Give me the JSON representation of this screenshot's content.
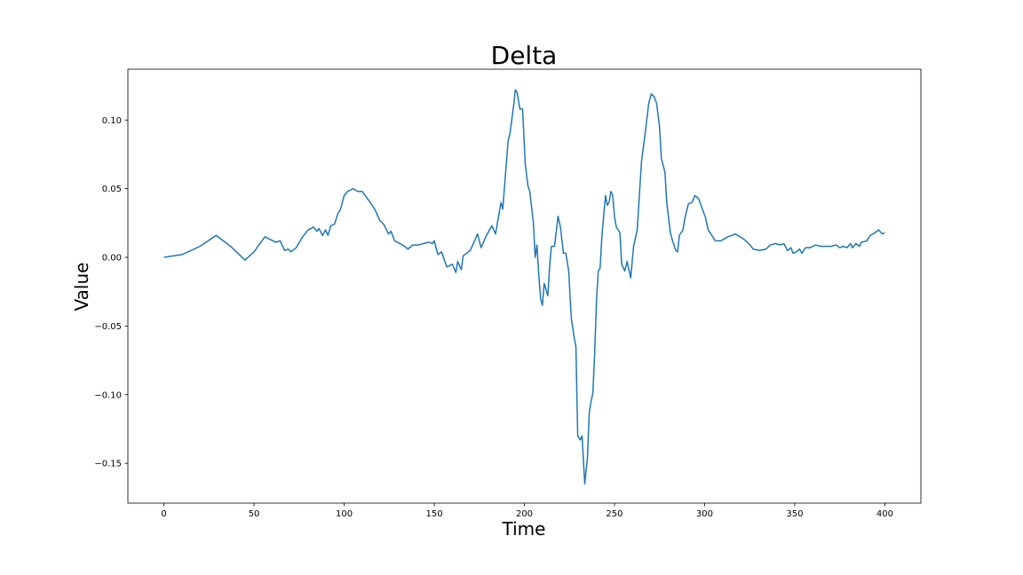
{
  "chart_data": {
    "type": "line",
    "title": "Delta",
    "x_label": "Time",
    "y_label": "Value",
    "series": [
      {
        "name": "Delta",
        "color": "#1f77b4",
        "x": [
          0,
          10,
          20,
          29,
          37,
          45,
          50,
          56,
          62,
          64.5,
          67,
          69,
          70.4,
          73.4,
          77,
          80,
          83,
          85,
          86,
          88,
          89.7,
          91,
          92.6,
          94.6,
          96.6,
          98,
          100,
          102,
          105,
          107.4,
          110,
          112.8,
          115,
          117,
          119.7,
          122,
          124.6,
          126,
          128,
          131,
          133.5,
          135.5,
          138,
          141,
          144,
          147,
          149,
          150,
          152,
          154,
          157,
          160,
          162,
          163,
          165,
          166,
          170,
          174,
          176,
          179,
          182,
          184,
          187,
          188,
          191,
          192,
          194,
          195,
          196,
          197.5,
          199,
          200.5,
          202,
          203,
          205,
          206,
          207,
          208,
          209,
          210,
          211,
          213,
          214,
          215,
          216.7,
          218.7,
          220,
          221.7,
          223,
          224.6,
          226,
          227.6,
          228.6,
          229.6,
          231,
          232,
          233.5,
          235,
          236,
          237,
          238,
          239,
          240,
          241,
          242,
          243,
          245,
          246,
          247,
          248,
          249,
          250,
          251,
          253,
          254,
          255.7,
          257,
          259,
          260.6,
          262.6,
          265,
          267,
          269,
          270.4,
          272,
          273.4,
          275,
          276,
          278,
          279,
          281,
          282,
          284,
          285,
          286,
          288,
          289,
          291,
          293,
          294.6,
          296.6,
          298.5,
          300.5,
          302,
          304,
          306,
          309,
          313,
          317,
          321,
          324.6,
          327,
          330.5,
          334,
          336.5,
          339.4,
          342,
          344,
          346,
          348,
          349,
          351,
          352.7,
          354,
          356,
          358.6,
          361.6,
          364.5,
          367.5,
          370,
          373,
          375,
          377,
          379,
          381,
          382,
          384,
          386,
          387,
          390,
          392,
          394.6,
          396.6,
          398.5,
          400
        ],
        "values": [
          0,
          0.002,
          0.008,
          0.016,
          0.008,
          -0.002,
          0.004,
          0.015,
          0.011,
          0.012,
          0.005,
          0.006,
          0.004,
          0.007,
          0.015,
          0.02,
          0.022,
          0.019,
          0.021,
          0.016,
          0.02,
          0.016,
          0.023,
          0.024,
          0.032,
          0.035,
          0.045,
          0.048,
          0.05,
          0.048,
          0.048,
          0.043,
          0.039,
          0.035,
          0.027,
          0.024,
          0.017,
          0.019,
          0.012,
          0.01,
          0.008,
          0.006,
          0.009,
          0.009,
          0.01,
          0.011,
          0.01,
          0.012,
          0.002,
          0.004,
          -0.007,
          -0.005,
          -0.011,
          -0.003,
          -0.009,
          0.001,
          0.005,
          0.017,
          0.007,
          0.016,
          0.023,
          0.017,
          0.04,
          0.035,
          0.085,
          0.09,
          0.11,
          0.122,
          0.12,
          0.108,
          0.108,
          0.068,
          0.052,
          0.048,
          0.025,
          0.0,
          0.009,
          -0.013,
          -0.03,
          -0.035,
          -0.019,
          -0.028,
          -0.007,
          0.008,
          0.008,
          0.03,
          0.022,
          0.003,
          0.003,
          -0.01,
          -0.044,
          -0.058,
          -0.065,
          -0.13,
          -0.133,
          -0.13,
          -0.165,
          -0.146,
          -0.113,
          -0.105,
          -0.099,
          -0.07,
          -0.032,
          -0.01,
          -0.008,
          0.015,
          0.045,
          0.038,
          0.04,
          0.048,
          0.045,
          0.03,
          0.022,
          0.018,
          -0.005,
          -0.01,
          -0.003,
          -0.015,
          0.008,
          0.02,
          0.07,
          0.09,
          0.112,
          0.119,
          0.117,
          0.112,
          0.095,
          0.072,
          0.062,
          0.04,
          0.018,
          0.013,
          0.005,
          0.004,
          0.016,
          0.02,
          0.028,
          0.039,
          0.04,
          0.045,
          0.043,
          0.036,
          0.029,
          0.02,
          0.016,
          0.012,
          0.012,
          0.015,
          0.017,
          0.014,
          0.01,
          0.006,
          0.005,
          0.006,
          0.009,
          0.01,
          0.009,
          0.01,
          0.005,
          0.007,
          0.003,
          0.004,
          0.006,
          0.003,
          0.007,
          0.007,
          0.009,
          0.008,
          0.008,
          0.008,
          0.009,
          0.007,
          0.008,
          0.007,
          0.01,
          0.007,
          0.01,
          0.008,
          0.011,
          0.012,
          0.016,
          0.018,
          0.02,
          0.017,
          0.018
        ]
      }
    ],
    "xlim": [
      -20,
      420
    ],
    "ylim": [
      -0.179,
      0.137
    ],
    "xticks": [
      0,
      50,
      100,
      150,
      200,
      250,
      300,
      350,
      400
    ],
    "yticks": [
      {
        "value": -0.15,
        "label": "−0.15"
      },
      {
        "value": -0.1,
        "label": "−0.10"
      },
      {
        "value": -0.05,
        "label": "−0.05"
      },
      {
        "value": 0,
        "label": "0.00"
      },
      {
        "value": 0.05,
        "label": "0.05"
      },
      {
        "value": 0.1,
        "label": "0.10"
      }
    ],
    "grid": false
  }
}
